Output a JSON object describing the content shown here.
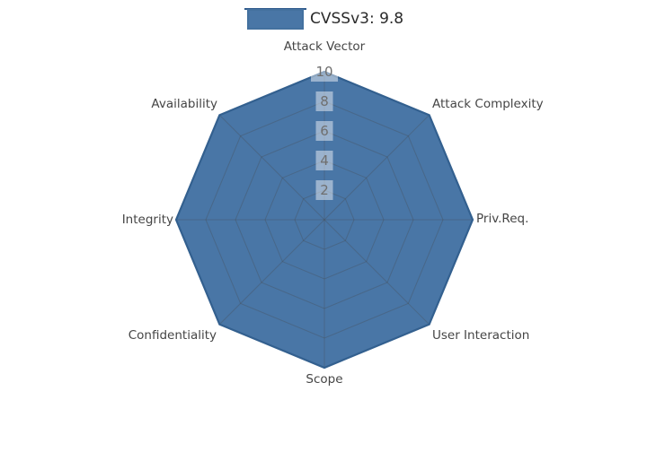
{
  "legend": {
    "label": "CVSSv3: 9.8",
    "swatch_color": "#4976a6",
    "swatch_border": "#44719f"
  },
  "chart_data": {
    "type": "radar",
    "title": "CVSSv3: 9.8",
    "categories": [
      "Attack Vector",
      "Attack Complexity",
      "Priv.Req.",
      "User Interaction",
      "Scope",
      "Confidentiality",
      "Integrity",
      "Availability"
    ],
    "series": [
      {
        "name": "CVSSv3: 9.8",
        "values": [
          10,
          10,
          10,
          10,
          10,
          10,
          10,
          10
        ]
      }
    ],
    "rlim": [
      0,
      10
    ],
    "rticks": [
      2,
      4,
      6,
      8,
      10
    ],
    "grid": true,
    "legend_position": "top-center",
    "colors": {
      "fill": "#4976a6",
      "edge": "#33608f",
      "grid_line": "rgba(70,70,70,0.30)",
      "tick_text": "#6f6f6f",
      "tick_box": "rgba(255,255,255,0.45)",
      "axis_label": "#454545",
      "legend_text": "#2a2a2a"
    }
  }
}
